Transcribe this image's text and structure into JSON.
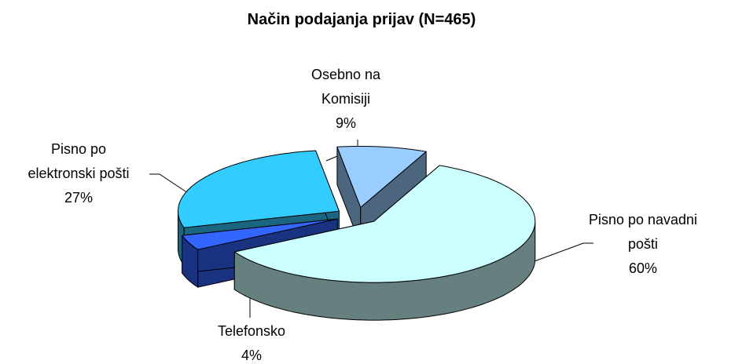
{
  "chart_data": {
    "type": "pie",
    "title": "Način podajanja prijav (N=465)",
    "categories": [
      "Pisno po navadni pošti",
      "Telefonsko",
      "Pisno po elektronski pošti",
      "Osebno na Komisiji"
    ],
    "values": [
      60,
      4,
      27,
      9
    ],
    "value_labels": [
      "60%",
      "4%",
      "27%",
      "9%"
    ],
    "colors": [
      "#ccffff",
      "#3366ff",
      "#33ccff",
      "#99ccff"
    ]
  }
}
